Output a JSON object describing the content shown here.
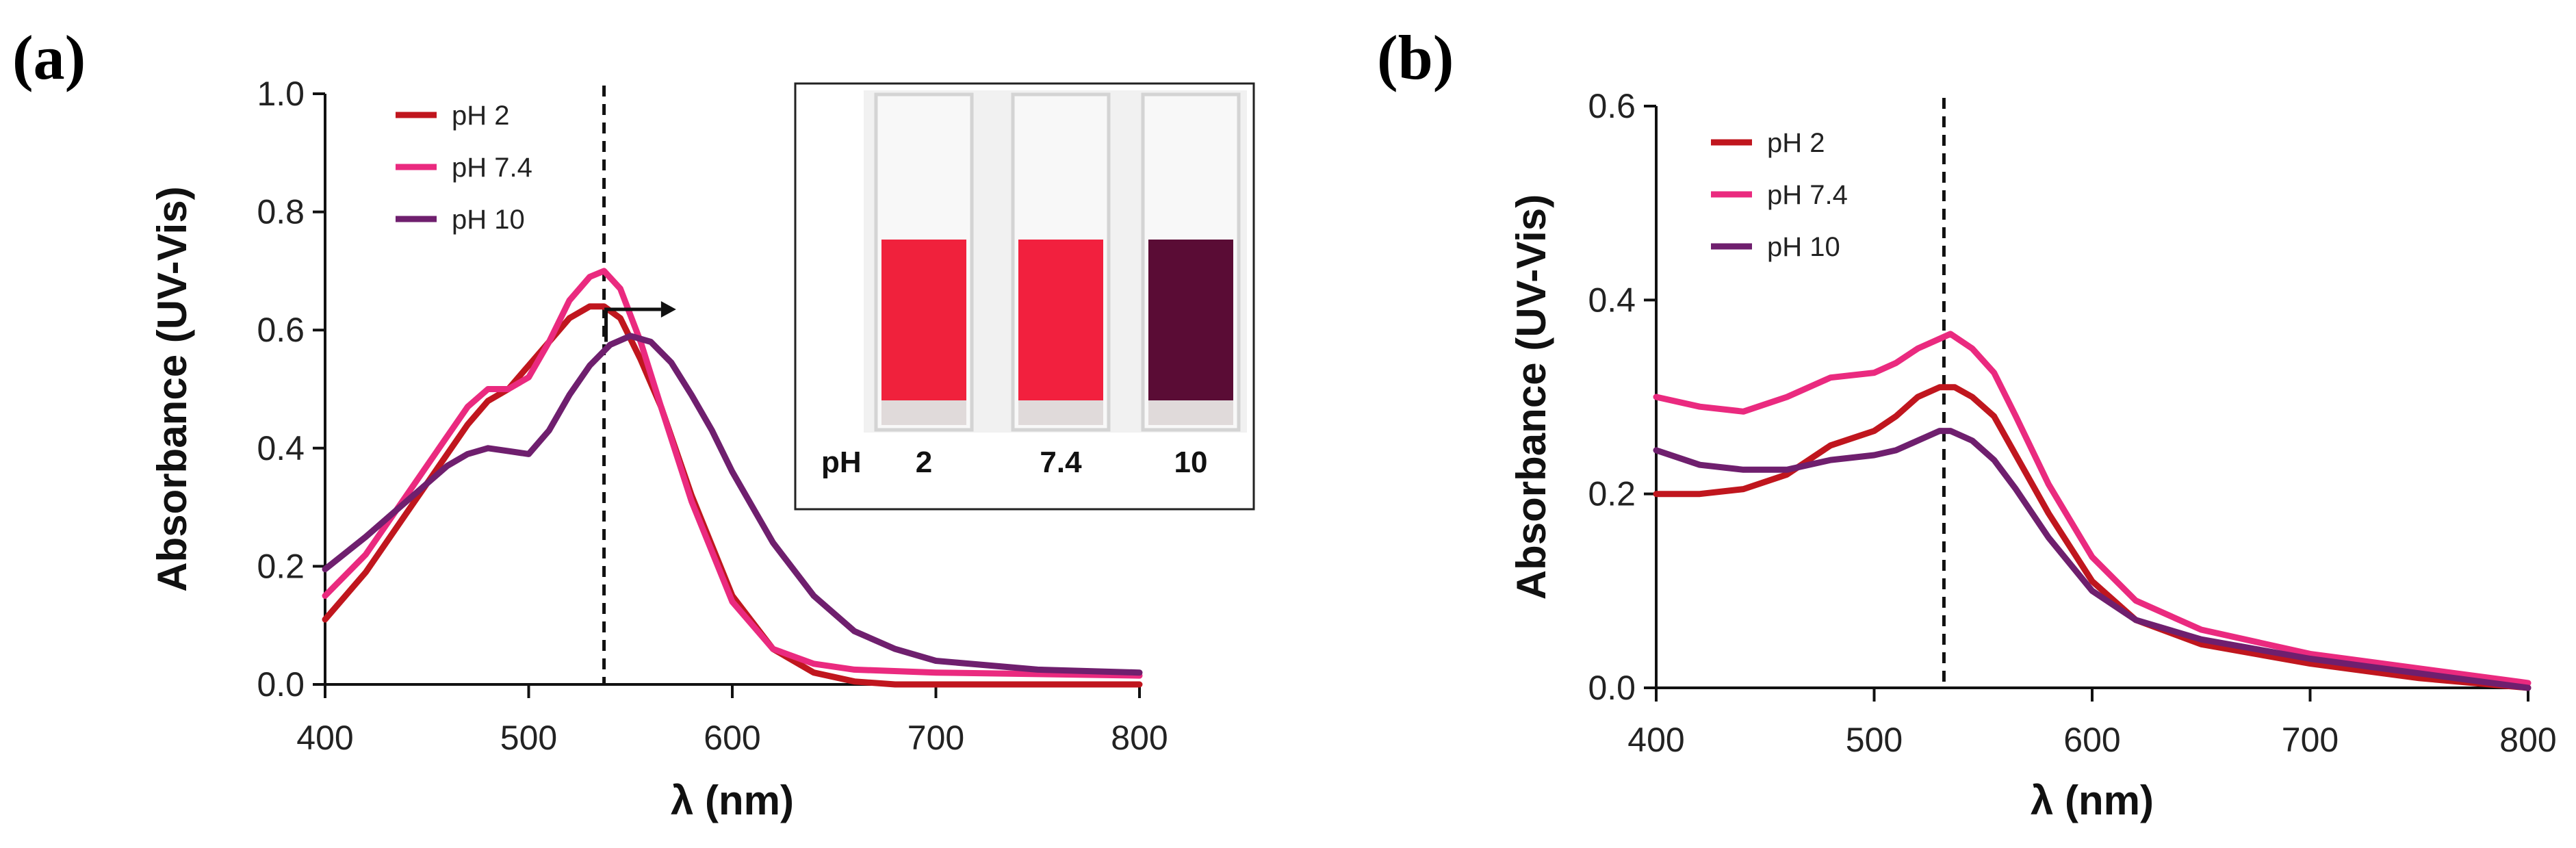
{
  "figure_labels": [
    "(a)",
    "(b)"
  ],
  "colors": {
    "pH 2": "#c0161e",
    "pH 7.4": "#ea2a7f",
    "pH 10": "#6f1f6e",
    "axis": "#111111"
  },
  "inset": {
    "pH_label": "pH",
    "samples": [
      {
        "label": "2",
        "color": "#f0213c"
      },
      {
        "label": "7.4",
        "color": "#f2203e"
      },
      {
        "label": "10",
        "color": "#5a0c35"
      }
    ]
  },
  "chart_data": [
    {
      "type": "line",
      "panel": "(a)",
      "title": "",
      "xlabel": "λ (nm)",
      "ylabel": "Absorbance (UV-Vis)",
      "xlim": [
        400,
        800
      ],
      "ylim": [
        0,
        1.0
      ],
      "xticks": [
        400,
        500,
        600,
        700,
        800
      ],
      "yticks": [
        0.0,
        0.2,
        0.4,
        0.6,
        0.8,
        1.0
      ],
      "ytick_labels": [
        "0.0",
        "0.2",
        "0.4",
        "0.6",
        "0.8",
        "1.0"
      ],
      "dashed_line_x": 537,
      "shift_arrow": {
        "from_x": 538,
        "to_x": 565,
        "y": 0.635
      },
      "legend": [
        "pH 2",
        "pH 7.4",
        "pH 10"
      ],
      "series": [
        {
          "name": "pH 2",
          "color": "#c0161e",
          "x": [
            400,
            420,
            440,
            460,
            470,
            480,
            490,
            500,
            510,
            520,
            530,
            537,
            545,
            555,
            565,
            580,
            600,
            620,
            640,
            660,
            680,
            700,
            800
          ],
          "y": [
            0.11,
            0.19,
            0.29,
            0.39,
            0.44,
            0.48,
            0.5,
            0.54,
            0.58,
            0.62,
            0.64,
            0.64,
            0.62,
            0.55,
            0.47,
            0.32,
            0.15,
            0.06,
            0.02,
            0.005,
            0.0,
            0.0,
            0.0
          ]
        },
        {
          "name": "pH 7.4",
          "color": "#ea2a7f",
          "x": [
            400,
            420,
            440,
            460,
            470,
            480,
            485,
            490,
            500,
            510,
            520,
            530,
            537,
            545,
            555,
            565,
            580,
            600,
            620,
            640,
            660,
            700,
            800
          ],
          "y": [
            0.15,
            0.22,
            0.32,
            0.42,
            0.47,
            0.5,
            0.5,
            0.5,
            0.52,
            0.58,
            0.65,
            0.69,
            0.7,
            0.67,
            0.58,
            0.47,
            0.31,
            0.14,
            0.06,
            0.035,
            0.025,
            0.02,
            0.015
          ]
        },
        {
          "name": "pH 10",
          "color": "#6f1f6e",
          "x": [
            400,
            420,
            440,
            460,
            470,
            480,
            490,
            500,
            510,
            520,
            530,
            540,
            550,
            560,
            570,
            580,
            590,
            600,
            620,
            640,
            660,
            680,
            700,
            750,
            800
          ],
          "y": [
            0.195,
            0.25,
            0.31,
            0.37,
            0.39,
            0.4,
            0.395,
            0.39,
            0.43,
            0.49,
            0.54,
            0.575,
            0.59,
            0.58,
            0.545,
            0.49,
            0.43,
            0.36,
            0.24,
            0.15,
            0.09,
            0.06,
            0.04,
            0.025,
            0.02
          ]
        }
      ]
    },
    {
      "type": "line",
      "panel": "(b)",
      "title": "",
      "xlabel": "λ (nm)",
      "ylabel": "Absorbance (UV-Vis)",
      "xlim": [
        400,
        800
      ],
      "ylim": [
        0,
        0.6
      ],
      "xticks": [
        400,
        500,
        600,
        700,
        800
      ],
      "yticks": [
        0.0,
        0.2,
        0.4,
        0.6
      ],
      "ytick_labels": [
        "0.0",
        "0.2",
        "0.4",
        "0.6"
      ],
      "dashed_line_x": 532,
      "legend": [
        "pH 2",
        "pH 7.4",
        "pH 10"
      ],
      "series": [
        {
          "name": "pH 2",
          "color": "#c0161e",
          "x": [
            400,
            420,
            440,
            460,
            480,
            500,
            510,
            520,
            530,
            537,
            545,
            555,
            565,
            580,
            600,
            620,
            650,
            700,
            750,
            800
          ],
          "y": [
            0.2,
            0.2,
            0.205,
            0.22,
            0.25,
            0.265,
            0.28,
            0.3,
            0.31,
            0.31,
            0.3,
            0.28,
            0.24,
            0.18,
            0.11,
            0.07,
            0.045,
            0.025,
            0.01,
            0.0
          ]
        },
        {
          "name": "pH 7.4",
          "color": "#ea2a7f",
          "x": [
            400,
            420,
            440,
            460,
            480,
            500,
            510,
            520,
            530,
            535,
            545,
            555,
            565,
            580,
            600,
            620,
            650,
            700,
            750,
            800
          ],
          "y": [
            0.3,
            0.29,
            0.285,
            0.3,
            0.32,
            0.325,
            0.335,
            0.35,
            0.36,
            0.365,
            0.35,
            0.325,
            0.28,
            0.21,
            0.135,
            0.09,
            0.06,
            0.035,
            0.02,
            0.005
          ]
        },
        {
          "name": "pH 10",
          "color": "#6f1f6e",
          "x": [
            400,
            420,
            440,
            460,
            480,
            500,
            510,
            520,
            530,
            535,
            545,
            555,
            565,
            580,
            600,
            620,
            650,
            700,
            750,
            800
          ],
          "y": [
            0.245,
            0.23,
            0.225,
            0.225,
            0.235,
            0.24,
            0.245,
            0.255,
            0.265,
            0.265,
            0.255,
            0.235,
            0.205,
            0.155,
            0.1,
            0.07,
            0.05,
            0.03,
            0.015,
            0.0
          ]
        }
      ]
    }
  ]
}
